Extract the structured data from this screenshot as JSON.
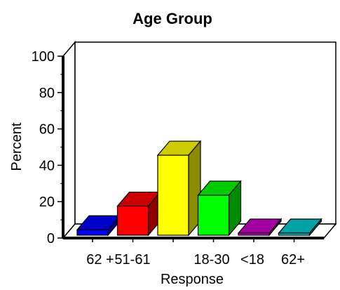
{
  "chart_data": {
    "type": "bar",
    "title": "Age Group",
    "xlabel": "Response",
    "ylabel": "Percent",
    "ylim": [
      0,
      100
    ],
    "yticks": [
      "0",
      "20",
      "40",
      "60",
      "80",
      "100"
    ],
    "categories": [
      "62 +",
      "51-61",
      "",
      "18-30",
      "<18",
      "62+"
    ],
    "values": [
      3,
      16,
      44,
      22,
      0.5,
      0.5
    ],
    "colors": [
      "#0000ff",
      "#ff0000",
      "#ffff00",
      "#00ff00",
      "#cc00cc",
      "#00cccc"
    ],
    "grid": false,
    "legend": "none",
    "style": "3d"
  }
}
